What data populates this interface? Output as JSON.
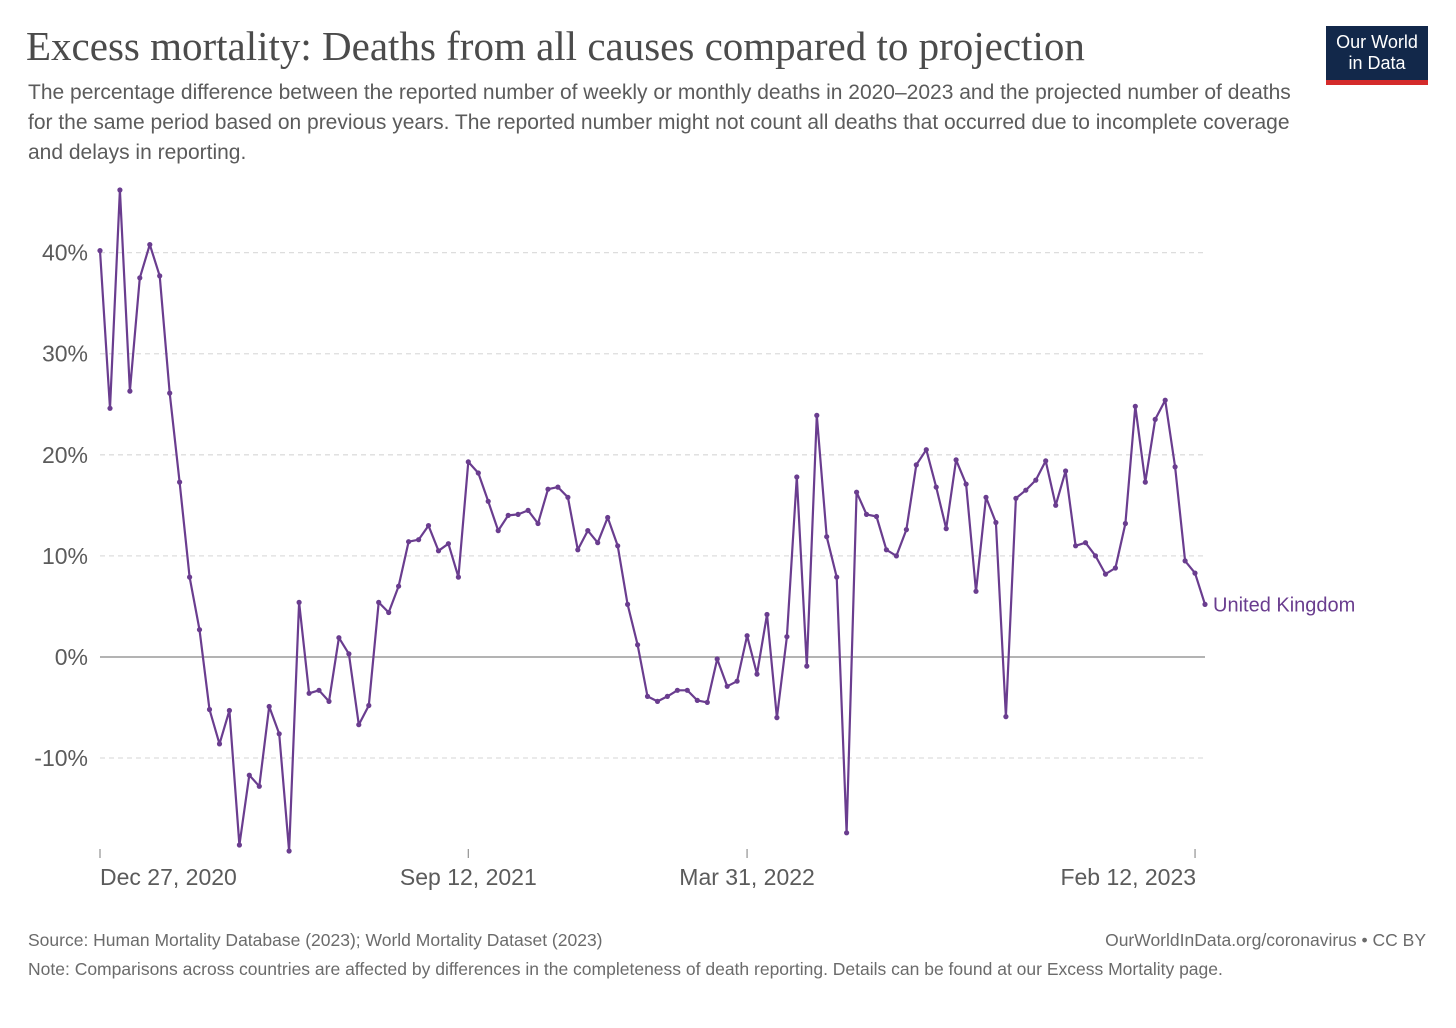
{
  "title": "Excess mortality: Deaths from all causes compared to projection",
  "subtitle": "The percentage difference between the reported number of weekly or monthly deaths in 2020–2023 and the projected number of deaths for the same period based on previous years. The reported number might not count all deaths that occurred due to incomplete coverage and delays in reporting.",
  "logo": {
    "line1": "Our World",
    "line2": "in Data"
  },
  "footer": {
    "source": "Source: Human Mortality Database (2023); World Mortality Dataset (2023)",
    "url": "OurWorldInData.org/coronavirus • CC BY",
    "note": "Note: Comparisons across countries are affected by differences in the completeness of death reporting. Details can be found at our Excess Mortality page."
  },
  "colors": {
    "series": "#6a3d8f",
    "zero_line": "#9a9a9a",
    "grid": "#dddddd",
    "logo_bg": "#12284a",
    "logo_accent": "#d42b2b"
  },
  "chart_data": {
    "type": "line",
    "title": "Excess mortality: Deaths from all causes compared to projection",
    "xlabel": "",
    "ylabel": "",
    "ylim": [
      -19,
      46
    ],
    "grid": true,
    "y_ticks": [
      {
        "value": 40,
        "label": "40%"
      },
      {
        "value": 30,
        "label": "30%"
      },
      {
        "value": 20,
        "label": "20%"
      },
      {
        "value": 10,
        "label": "10%"
      },
      {
        "value": 0,
        "label": "0%"
      },
      {
        "value": -10,
        "label": "-10%"
      }
    ],
    "x_ticks": [
      {
        "index": 0,
        "label": "Dec 27, 2020"
      },
      {
        "index": 37,
        "label": "Sep 12, 2021"
      },
      {
        "index": 65,
        "label": "Mar 31, 2022"
      },
      {
        "index": 110,
        "label": "Feb 12, 2023"
      }
    ],
    "series": [
      {
        "name": "United Kingdom",
        "values": [
          40.2,
          24.6,
          46.2,
          26.3,
          37.5,
          40.8,
          37.7,
          26.1,
          17.3,
          7.9,
          2.7,
          -5.2,
          -8.6,
          -5.3,
          -18.6,
          -11.7,
          -12.8,
          -4.9,
          -7.6,
          -19.2,
          5.4,
          -3.6,
          -3.3,
          -4.4,
          1.9,
          0.3,
          -6.7,
          -4.8,
          5.4,
          4.4,
          7.0,
          11.4,
          11.6,
          13.0,
          10.5,
          11.2,
          7.9,
          19.3,
          18.2,
          15.4,
          12.5,
          14.0,
          14.1,
          14.5,
          13.2,
          16.6,
          16.8,
          15.8,
          10.6,
          12.5,
          11.3,
          13.8,
          11.0,
          5.2,
          1.2,
          -3.9,
          -4.4,
          -3.9,
          -3.3,
          -3.3,
          -4.3,
          -4.5,
          -0.2,
          -2.9,
          -2.4,
          2.1,
          -1.7,
          4.2,
          -6.0,
          2.0,
          17.8,
          -0.9,
          23.9,
          11.9,
          7.9,
          -17.4,
          16.3,
          14.1,
          13.9,
          10.6,
          10.0,
          12.6,
          19.0,
          20.5,
          16.8,
          12.7,
          19.5,
          17.1,
          6.5,
          15.8,
          13.3,
          -5.9,
          15.7,
          16.5,
          17.5,
          19.4,
          15.0,
          18.4,
          11.0,
          11.3,
          10.0,
          8.2,
          8.8,
          13.2,
          24.8,
          17.3,
          23.5,
          25.4,
          18.8,
          9.5,
          8.3,
          5.2
        ]
      }
    ]
  }
}
